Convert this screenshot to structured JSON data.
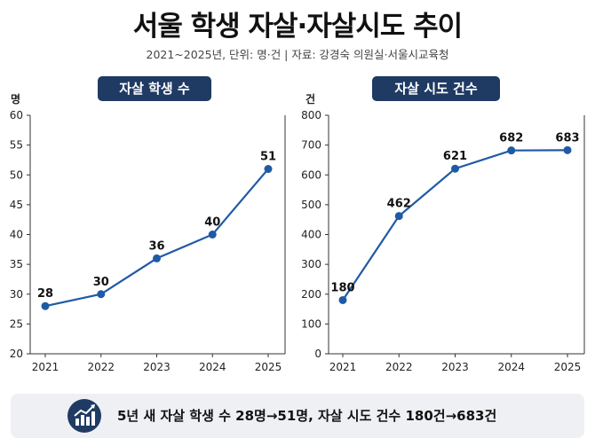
{
  "title": "서울 학생 자살·자살시도 추이",
  "subtitle": "2021~2025년, 단위: 명·건  |  자료: 강경숙 의원실·서울시교육청",
  "footer": {
    "icon": "growth-chart-icon",
    "text": "5년 새 자살 학생 수 28명→51명, 자살 시도 건수 180건→683건"
  },
  "colors": {
    "accent": "#1f5aa6",
    "header_bg": "#1f3a63",
    "footer_bg": "#eef0f3"
  },
  "chart_data": [
    {
      "type": "line",
      "title": "자살 학생 수",
      "ylabel": "명",
      "categories": [
        "2021",
        "2022",
        "2023",
        "2024",
        "2025"
      ],
      "values": [
        28,
        30,
        36,
        40,
        51
      ],
      "ylim": [
        20,
        60
      ],
      "yticks": [
        20,
        25,
        30,
        35,
        40,
        45,
        50,
        55,
        60
      ],
      "grid": false
    },
    {
      "type": "line",
      "title": "자살 시도 건수",
      "ylabel": "건",
      "categories": [
        "2021",
        "2022",
        "2023",
        "2024",
        "2025"
      ],
      "values": [
        180,
        462,
        621,
        682,
        683
      ],
      "ylim": [
        0,
        800
      ],
      "yticks": [
        0,
        100,
        200,
        300,
        400,
        500,
        600,
        700,
        800
      ],
      "grid": false
    }
  ]
}
